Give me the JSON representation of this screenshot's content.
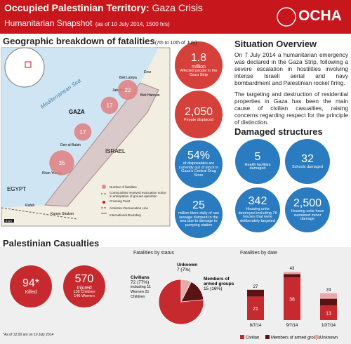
{
  "header": {
    "title": "Occupied Palestinian Territory:",
    "title_2": "Gaza Crisis",
    "subtitle": "Humanitarian Snapshot",
    "date": "(as of 10 July 2014, 1500 hrs)",
    "logo": "OCHA"
  },
  "map": {
    "title": "Geographic breakdown of fatalities",
    "title_note": "(7th to 10th of July)",
    "places": {
      "sea": "Mediterranean Sea",
      "gaza": "GAZA",
      "israel": "ISRAEL",
      "egypt": "EGYPT",
      "rafah": "Rafah",
      "khan_younis": "Khan Younis",
      "deir": "Deir al-Balah",
      "beit_lahiya": "Beit Lahiya",
      "jabalya": "Jabalya",
      "beit_hanoun": "Beit Hanoun",
      "erez": "Erez",
      "karem": "Karem Shalom"
    },
    "fatalities": [
      22,
      17,
      17,
      35
    ],
    "legend": [
      "Number of fatalities",
      "Communities received evacuation notice in anticipation of ground operation",
      "Crossing Point",
      "Armistice Demarcation Line",
      "International Boundary"
    ],
    "scale": "5 km"
  },
  "key_figures": [
    {
      "value": "1.8",
      "unit": "million",
      "text": "Affected people in the Gaza Strip"
    },
    {
      "value": "2,050",
      "unit": "",
      "text": "People displaced"
    },
    {
      "value": "54%",
      "unit": "",
      "text": "of disposables are currently out of stock in Gaza's Central Drug Store"
    },
    {
      "value": "25",
      "unit": "",
      "text": "million liters daily of raw sewage dumped to the sea due to damage to pumping station"
    }
  ],
  "situation": {
    "title": "Situation Overview",
    "paragraphs": [
      "On 7 July 2014 a humanitarian emergency was declared in the Gaza Strip, following a severe escalation in hostilities involving intense Israeli aerial and navy bombardment and Palestinian rocket firing.",
      "The targeting and destruction of residential properties in Gaza has been the main cause of civilian casualties, raising concerns regarding respect for the principle of distinction."
    ]
  },
  "damaged": {
    "title": "Damaged structures",
    "items": [
      {
        "value": "5",
        "text": "Health facilities damaged"
      },
      {
        "value": "32",
        "text": "Schools damaged"
      },
      {
        "value": "342",
        "text": "Housing units destroyed including 78 houses that were deliberately targeted"
      },
      {
        "value": "2,500",
        "text": "Housing units have sustained minor damage"
      }
    ]
  },
  "casualties": {
    "title": "Palestinian Casualties",
    "killed": {
      "value": "94*",
      "text": "Killed"
    },
    "injured": {
      "value": "570",
      "text": "Injured",
      "children": "138 Children",
      "women": "146 Women"
    },
    "footnote": "*As of 12:00 am on 10 July 2014"
  },
  "chart_data": [
    {
      "type": "pie",
      "title": "Fatalities by status",
      "categories": [
        "Civilians",
        "Unknown",
        "Members of armed groups"
      ],
      "values": [
        72,
        7,
        15
      ],
      "value_labels": [
        "72 (77%)",
        "7 (7%)",
        "15 (16%)"
      ],
      "colors": [
        "#c62a2f",
        "#e9a9a9",
        "#5b1212"
      ],
      "civilian_detail": "including 11 Women 21 Children"
    },
    {
      "type": "bar",
      "stacked": true,
      "title": "Fatalities by date",
      "categories": [
        "8/7/14",
        "9/7/14",
        "10/7/14"
      ],
      "series": [
        {
          "name": "Civilian",
          "color": "#c62a2f",
          "values": [
            21,
            38,
            13
          ]
        },
        {
          "name": "Members of armed groups",
          "color": "#5b1212",
          "values": [
            6,
            3,
            6
          ]
        },
        {
          "name": "Unknown",
          "color": "#e9a9a9",
          "values": [
            0,
            2,
            5
          ]
        }
      ],
      "totals": [
        27,
        43,
        24
      ]
    }
  ]
}
